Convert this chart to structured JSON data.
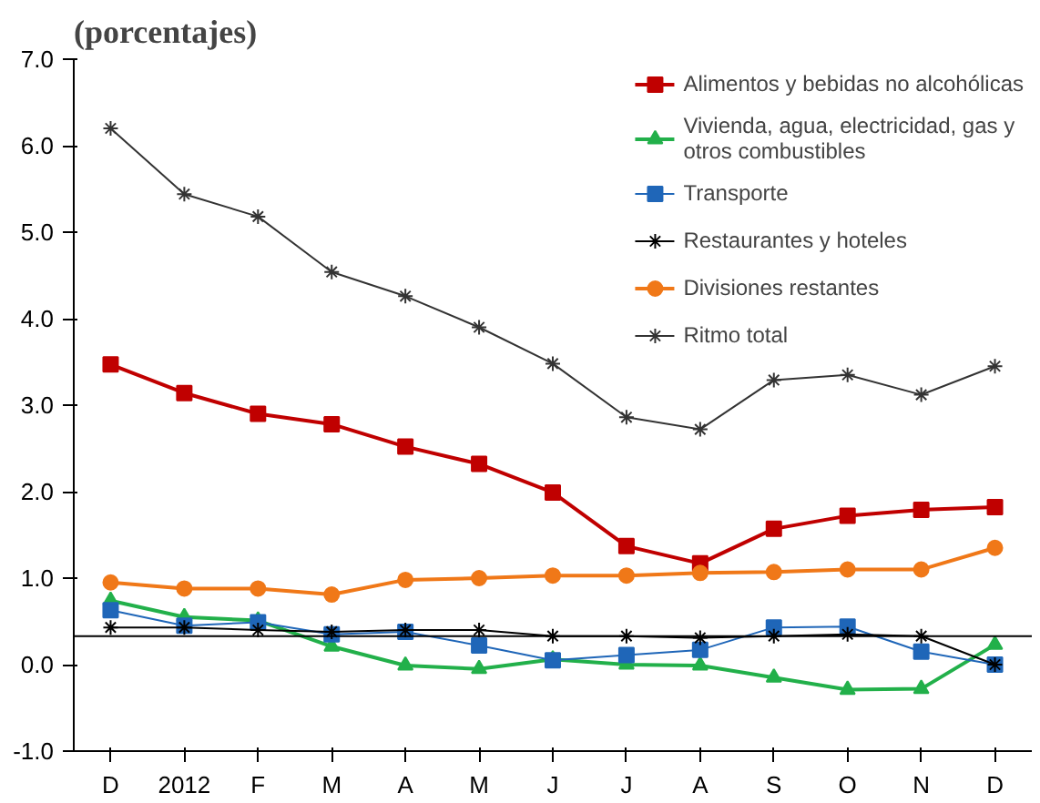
{
  "chart_data": {
    "type": "line",
    "title": "(porcentajes)",
    "categories": [
      "D",
      "2012",
      "F",
      "M",
      "A",
      "M",
      "J",
      "J",
      "A",
      "S",
      "O",
      "N",
      "D"
    ],
    "series": [
      {
        "name": "Alimentos y bebidas no alcohólicas",
        "color": "#c00000",
        "marker": "square",
        "values": [
          3.47,
          3.14,
          2.9,
          2.78,
          2.52,
          2.32,
          1.99,
          1.37,
          1.17,
          1.57,
          1.72,
          1.79,
          1.82
        ]
      },
      {
        "name": "Vivienda, agua, electricidad, gas y\notros combustibles",
        "color": "#22b04a",
        "marker": "triangle",
        "values": [
          0.74,
          0.55,
          0.51,
          0.21,
          -0.01,
          -0.05,
          0.06,
          0.0,
          -0.01,
          -0.15,
          -0.29,
          -0.28,
          0.23
        ]
      },
      {
        "name": "Transporte",
        "color": "#1f66b8",
        "marker": "square",
        "values": [
          0.63,
          0.45,
          0.49,
          0.35,
          0.38,
          0.22,
          0.05,
          0.11,
          0.17,
          0.43,
          0.44,
          0.15,
          0.0
        ]
      },
      {
        "name": "Restaurantes y hoteles",
        "color": "#000000",
        "marker": "cross",
        "values": [
          0.43,
          0.43,
          0.4,
          0.38,
          0.4,
          0.4,
          0.33,
          0.33,
          0.31,
          0.33,
          0.35,
          0.33,
          0.0
        ]
      },
      {
        "name": "Divisiones restantes",
        "color": "#f07818",
        "marker": "circle",
        "values": [
          0.95,
          0.88,
          0.88,
          0.81,
          0.98,
          1.0,
          1.03,
          1.03,
          1.06,
          1.07,
          1.1,
          1.1,
          1.35
        ]
      },
      {
        "name": "Ritmo total",
        "color": "#333333",
        "marker": "cross",
        "values": [
          6.2,
          5.44,
          5.18,
          4.54,
          4.26,
          3.9,
          3.48,
          2.86,
          2.72,
          3.29,
          3.35,
          3.12,
          3.45
        ]
      }
    ],
    "ylim": [
      -1.0,
      7.0
    ],
    "yticks": [
      {
        "value": -1,
        "label": "-1.0"
      },
      {
        "value": 0,
        "label": "0.0"
      },
      {
        "value": 1,
        "label": "1.0"
      },
      {
        "value": 2,
        "label": "2.0"
      },
      {
        "value": 3,
        "label": "3.0"
      },
      {
        "value": 4,
        "label": "4.0"
      },
      {
        "value": 5,
        "label": "5.0"
      },
      {
        "value": 6,
        "label": "6.0"
      },
      {
        "value": 7,
        "label": "7.0"
      }
    ],
    "ref_lines": [
      {
        "axis": "y",
        "value": 0.33,
        "color": "#000000"
      }
    ],
    "grid": false,
    "legend": "top right"
  }
}
